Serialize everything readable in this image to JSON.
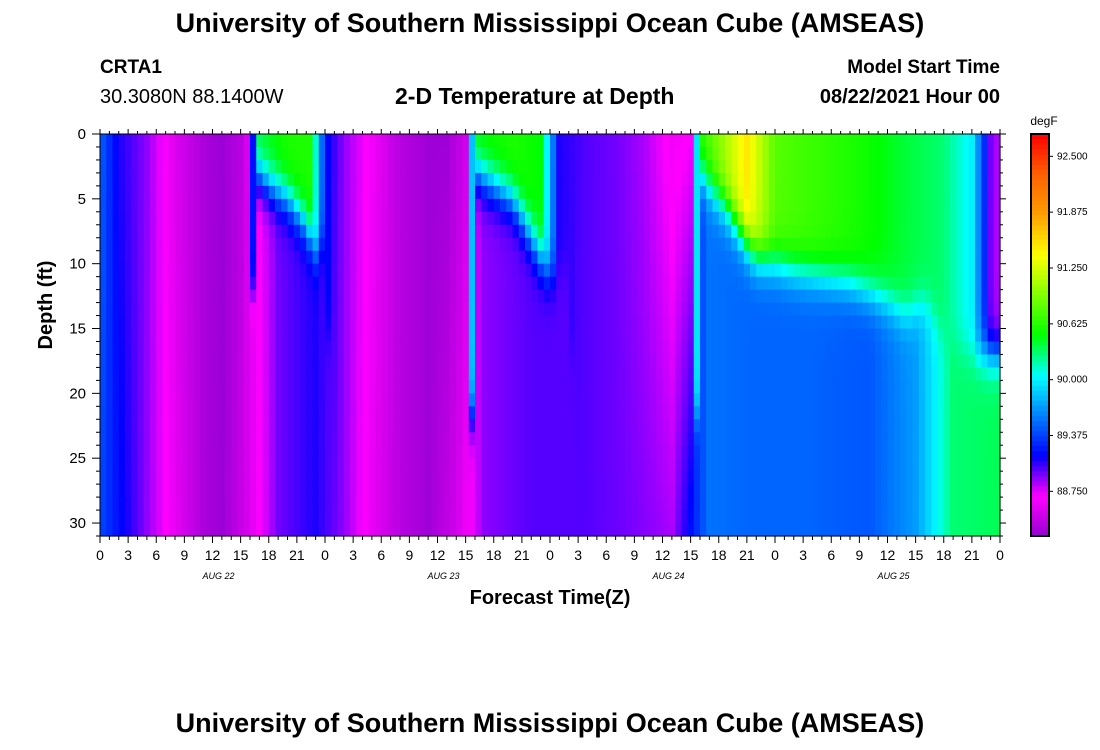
{
  "header": {
    "title": "University of Southern Mississippi Ocean Cube (AMSEAS)",
    "station_id": "CRTA1",
    "coordinates": "30.3080N  88.1400W",
    "plot_title": "2-D Temperature at Depth",
    "model_start_label": "Model Start Time",
    "model_start_value": "08/22/2021 Hour 00"
  },
  "footer": {
    "title": "University of Southern Mississippi Ocean Cube (AMSEAS)"
  },
  "chart_data": {
    "type": "heatmap",
    "title": "2-D Temperature at Depth",
    "xlabel": "Forecast Time(Z)",
    "ylabel": "Depth (ft)",
    "x_range_hours": [
      0,
      96
    ],
    "ylim": [
      31,
      0
    ],
    "x_tick_hours": [
      0,
      3,
      6,
      9,
      12,
      15,
      18,
      21,
      24,
      27,
      30,
      33,
      36,
      39,
      42,
      45,
      48,
      51,
      54,
      57,
      60,
      63,
      66,
      69,
      72,
      75,
      78,
      81,
      84,
      87,
      90,
      93,
      96
    ],
    "x_tick_labels": [
      "0",
      "3",
      "6",
      "9",
      "12",
      "15",
      "18",
      "21",
      "0",
      "3",
      "6",
      "9",
      "12",
      "15",
      "18",
      "21",
      "0",
      "3",
      "6",
      "9",
      "12",
      "15",
      "18",
      "21",
      "0",
      "3",
      "6",
      "9",
      "12",
      "15",
      "18",
      "21",
      "0"
    ],
    "day_labels": [
      {
        "label": "AUG 22",
        "hour": 12
      },
      {
        "label": "AUG 23",
        "hour": 36
      },
      {
        "label": "AUG 24",
        "hour": 60
      },
      {
        "label": "AUG 25",
        "hour": 84
      }
    ],
    "y_ticks": [
      0,
      5,
      10,
      15,
      20,
      25,
      30
    ],
    "y_tick_labels": [
      "0",
      "5",
      "10",
      "15",
      "20",
      "25",
      "30"
    ],
    "colorbar": {
      "unit": "degF",
      "min": 88.25,
      "max": 92.75,
      "ticks": [
        92.5,
        91.875,
        91.25,
        90.625,
        90.0,
        89.375,
        88.75
      ],
      "tick_labels": [
        "92.500",
        "91.875",
        "91.250",
        "90.625",
        "90.000",
        "89.375",
        "88.750"
      ],
      "palette": [
        "#9400d3",
        "#ff00ff",
        "#0000ff",
        "#0080ff",
        "#00ffff",
        "#00ff00",
        "#80ff00",
        "#ffff00",
        "#ffa000",
        "#ff6000",
        "#ff0000"
      ]
    },
    "surface_temp_keypoints": [
      {
        "hour": 0,
        "temp": 89.5
      },
      {
        "hour": 2,
        "temp": 89.1
      },
      {
        "hour": 5,
        "temp": 88.9
      },
      {
        "hour": 8,
        "temp": 88.55
      },
      {
        "hour": 11,
        "temp": 88.35
      },
      {
        "hour": 13,
        "temp": 88.28
      },
      {
        "hour": 15,
        "temp": 88.4
      },
      {
        "hour": 16,
        "temp": 88.6
      },
      {
        "hour": 17,
        "temp": 90.4
      },
      {
        "hour": 20,
        "temp": 90.6
      },
      {
        "hour": 22.5,
        "temp": 90.6
      },
      {
        "hour": 24,
        "temp": 89.2
      },
      {
        "hour": 26,
        "temp": 88.9
      },
      {
        "hour": 29,
        "temp": 88.65
      },
      {
        "hour": 32,
        "temp": 88.4
      },
      {
        "hour": 35,
        "temp": 88.3
      },
      {
        "hour": 37,
        "temp": 88.3
      },
      {
        "hour": 39,
        "temp": 88.5
      },
      {
        "hour": 40,
        "temp": 90.5
      },
      {
        "hour": 44,
        "temp": 90.6
      },
      {
        "hour": 47,
        "temp": 90.5
      },
      {
        "hour": 49,
        "temp": 89.1
      },
      {
        "hour": 52,
        "temp": 89.0
      },
      {
        "hour": 55,
        "temp": 88.95
      },
      {
        "hour": 58,
        "temp": 88.85
      },
      {
        "hour": 61,
        "temp": 88.65
      },
      {
        "hour": 63,
        "temp": 88.7
      },
      {
        "hour": 64,
        "temp": 90.6
      },
      {
        "hour": 69,
        "temp": 91.5
      },
      {
        "hour": 72,
        "temp": 90.8
      },
      {
        "hour": 80,
        "temp": 90.6
      },
      {
        "hour": 86,
        "temp": 90.4
      },
      {
        "hour": 90,
        "temp": 90.3
      },
      {
        "hour": 93,
        "temp": 90.0
      },
      {
        "hour": 95,
        "temp": 88.95
      },
      {
        "hour": 96,
        "temp": 88.8
      }
    ],
    "deep_temp_keypoints": [
      {
        "hour": 0,
        "temp": 89.4
      },
      {
        "hour": 4,
        "temp": 89.0
      },
      {
        "hour": 8,
        "temp": 88.6
      },
      {
        "hour": 11,
        "temp": 88.35
      },
      {
        "hour": 13,
        "temp": 88.28
      },
      {
        "hour": 16,
        "temp": 88.55
      },
      {
        "hour": 19,
        "temp": 88.95
      },
      {
        "hour": 23,
        "temp": 89.1
      },
      {
        "hour": 26,
        "temp": 88.9
      },
      {
        "hour": 29,
        "temp": 88.6
      },
      {
        "hour": 32,
        "temp": 88.4
      },
      {
        "hour": 35,
        "temp": 88.3
      },
      {
        "hour": 38,
        "temp": 88.5
      },
      {
        "hour": 41,
        "temp": 88.9
      },
      {
        "hour": 46,
        "temp": 89.0
      },
      {
        "hour": 52,
        "temp": 89.0
      },
      {
        "hour": 56,
        "temp": 88.95
      },
      {
        "hour": 59,
        "temp": 88.9
      },
      {
        "hour": 61,
        "temp": 88.85
      },
      {
        "hour": 65,
        "temp": 89.55
      },
      {
        "hour": 70,
        "temp": 89.5
      },
      {
        "hour": 76,
        "temp": 89.5
      },
      {
        "hour": 82,
        "temp": 89.45
      },
      {
        "hour": 87,
        "temp": 89.7
      },
      {
        "hour": 91,
        "temp": 90.3
      },
      {
        "hour": 96,
        "temp": 90.35
      }
    ],
    "mixed_layer_depth_keypoints": [
      {
        "hour": 0,
        "depth": 31
      },
      {
        "hour": 16,
        "depth": 31
      },
      {
        "hour": 16.5,
        "depth": 3
      },
      {
        "hour": 18,
        "depth": 4
      },
      {
        "hour": 20,
        "depth": 5
      },
      {
        "hour": 22,
        "depth": 7
      },
      {
        "hour": 23,
        "depth": 9
      },
      {
        "hour": 24,
        "depth": 8
      },
      {
        "hour": 25,
        "depth": 31
      },
      {
        "hour": 39.5,
        "depth": 31
      },
      {
        "hour": 40,
        "depth": 3
      },
      {
        "hour": 42,
        "depth": 4
      },
      {
        "hour": 44,
        "depth": 5
      },
      {
        "hour": 46,
        "depth": 8
      },
      {
        "hour": 48,
        "depth": 11
      },
      {
        "hour": 50,
        "depth": 10
      },
      {
        "hour": 51,
        "depth": 31
      },
      {
        "hour": 63.5,
        "depth": 31
      },
      {
        "hour": 64,
        "depth": 3
      },
      {
        "hour": 67,
        "depth": 6
      },
      {
        "hour": 70,
        "depth": 9.5
      },
      {
        "hour": 74,
        "depth": 10.5
      },
      {
        "hour": 80,
        "depth": 11.5
      },
      {
        "hour": 84,
        "depth": 13
      },
      {
        "hour": 86,
        "depth": 14
      },
      {
        "hour": 88,
        "depth": 13
      },
      {
        "hour": 90,
        "depth": 15.5
      },
      {
        "hour": 93,
        "depth": 17
      },
      {
        "hour": 96,
        "depth": 17
      }
    ]
  }
}
